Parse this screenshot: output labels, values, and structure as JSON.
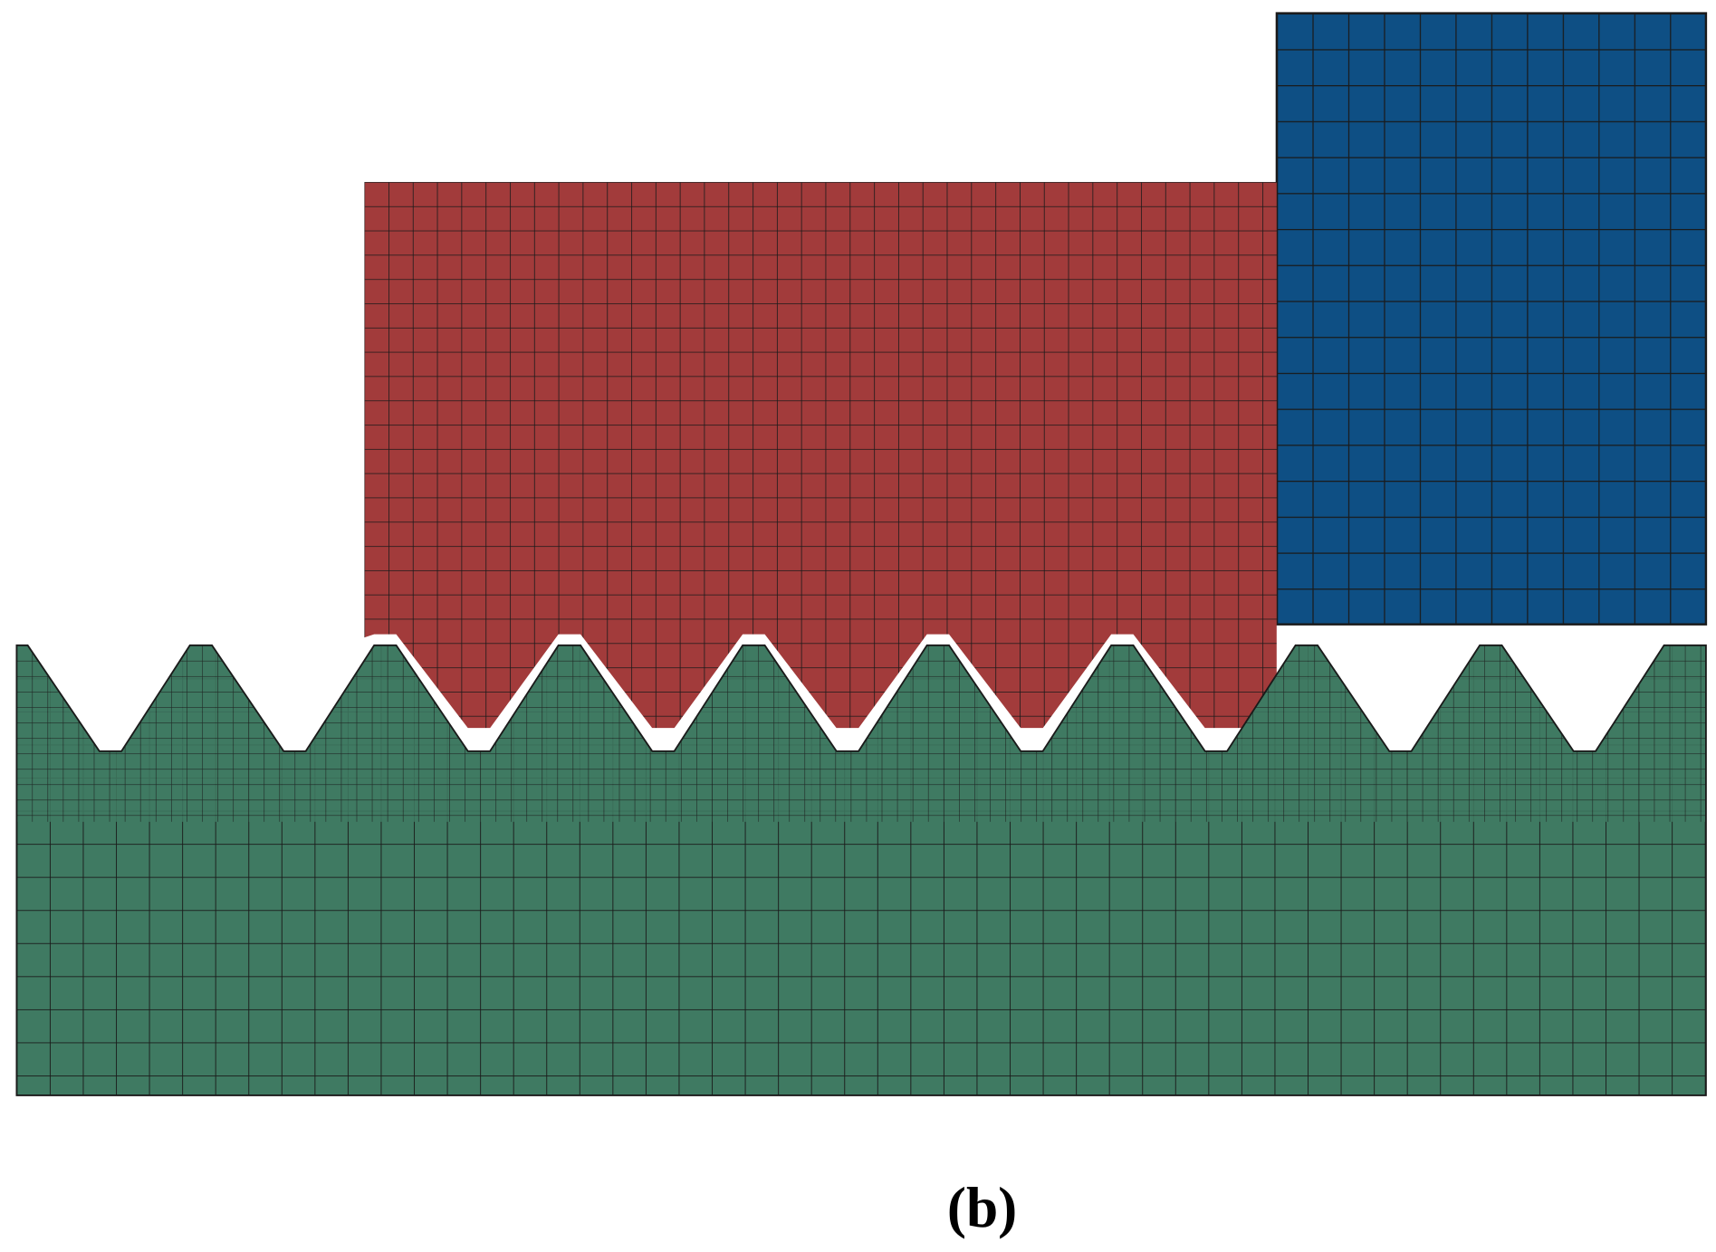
{
  "caption": "(b)"
}
